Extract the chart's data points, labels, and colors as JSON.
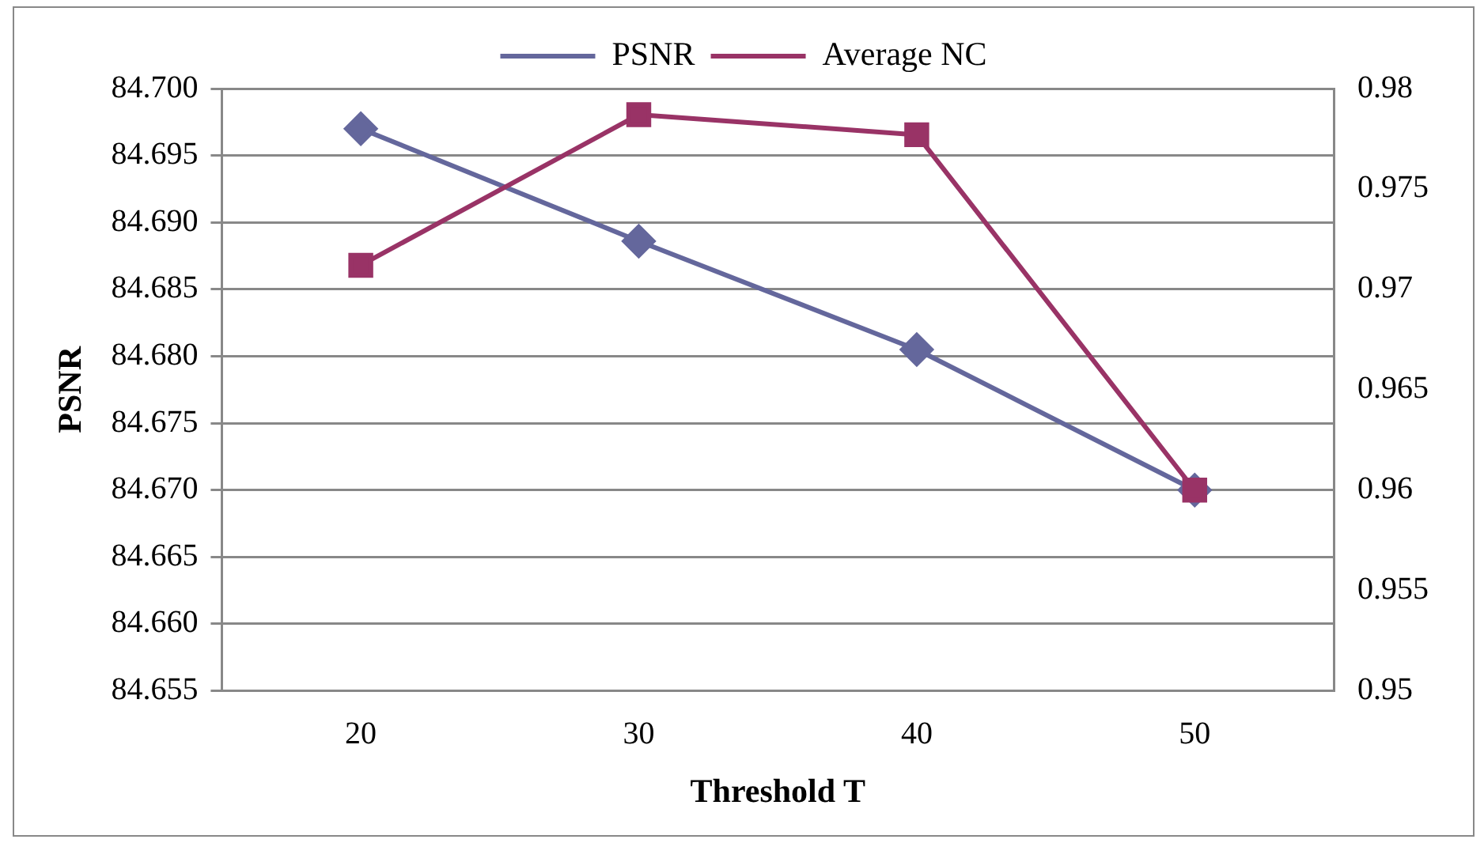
{
  "chart_data": {
    "type": "line",
    "xlabel": "Threshold T",
    "ylabel": "PSNR",
    "categories": [
      "20",
      "30",
      "40",
      "50"
    ],
    "series": [
      {
        "name": "PSNR",
        "color": "#64679c",
        "values": [
          84.697,
          84.6886,
          84.6805,
          84.67
        ],
        "marker": "diamond"
      },
      {
        "name": "Average NC",
        "color": "#993366",
        "values": [
          0.9712,
          0.9787,
          0.9777,
          0.96
        ],
        "marker": "square",
        "axis": "y2"
      }
    ],
    "ylim": [
      84.655,
      84.7
    ],
    "yticks": [
      {
        "value": 84.655,
        "label": "84.655"
      },
      {
        "value": 84.66,
        "label": "84.660"
      },
      {
        "value": 84.665,
        "label": "84.665"
      },
      {
        "value": 84.67,
        "label": "84.670"
      },
      {
        "value": 84.675,
        "label": "84.675"
      },
      {
        "value": 84.68,
        "label": "84.680"
      },
      {
        "value": 84.685,
        "label": "84.685"
      },
      {
        "value": 84.69,
        "label": "84.690"
      },
      {
        "value": 84.695,
        "label": "84.695"
      },
      {
        "value": 84.7,
        "label": "84.700"
      }
    ],
    "y2lim": [
      0.95,
      0.98
    ],
    "y2ticks": [
      0.95,
      0.955,
      0.96,
      0.965,
      0.97,
      0.975,
      0.98
    ],
    "grid": "y",
    "legend": "top"
  }
}
